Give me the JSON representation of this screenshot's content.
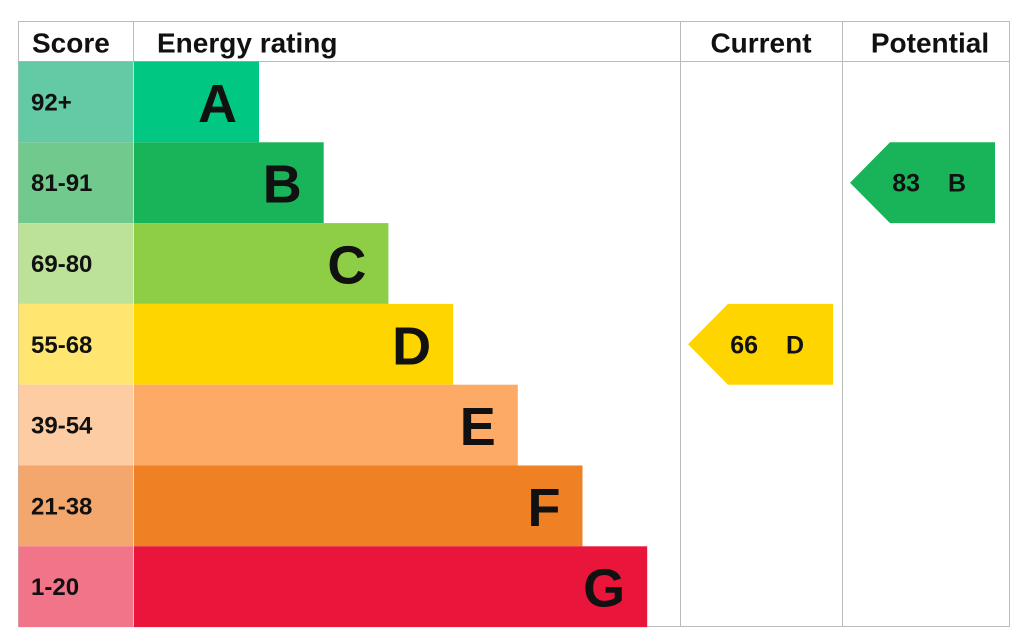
{
  "header": {
    "score": "Score",
    "rating": "Energy rating",
    "current": "Current",
    "potential": "Potential"
  },
  "bands": [
    {
      "score": "92+",
      "letter": "A",
      "color": "#00c781",
      "score_color": "#64c9a5"
    },
    {
      "score": "81-91",
      "letter": "B",
      "color": "#19b459",
      "score_color": "#72c98e"
    },
    {
      "score": "69-80",
      "letter": "C",
      "color": "#8dce46",
      "score_color": "#bce29a"
    },
    {
      "score": "55-68",
      "letter": "D",
      "color": "#ffd500",
      "score_color": "#ffe671"
    },
    {
      "score": "39-54",
      "letter": "E",
      "color": "#fcaa65",
      "score_color": "#fdcca3"
    },
    {
      "score": "21-38",
      "letter": "F",
      "color": "#ef8023",
      "score_color": "#f4a76d"
    },
    {
      "score": "1-20",
      "letter": "G",
      "color": "#e9153b",
      "score_color": "#f17489"
    }
  ],
  "current": {
    "score": 66,
    "letter": "D"
  },
  "potential": {
    "score": 83,
    "letter": "B"
  }
}
